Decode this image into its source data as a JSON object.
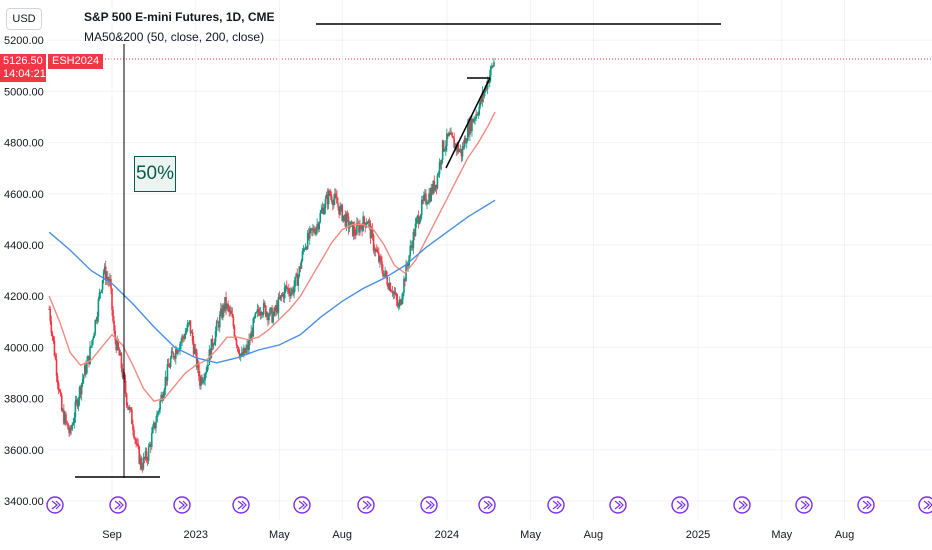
{
  "header": {
    "symbol_title": "S&P 500 E-mini Futures, 1D, CME",
    "indicator_legend": "MA50&200 (50, close, 200, close)",
    "currency": "USD"
  },
  "price_label": {
    "price": "5126.50",
    "countdown": "14:04:21",
    "symbol": "ESH2024"
  },
  "annotation": {
    "percent_label": "50%"
  },
  "colors": {
    "up": "#089981",
    "down": "#f23645",
    "ma50": "#f28b82",
    "ma200": "#4a90e2",
    "event_icon": "#7b2ff7",
    "drawing": "#000000"
  },
  "chart_data": {
    "type": "candlestick",
    "title": "S&P 500 E-mini Futures, 1D, CME",
    "y_axis": {
      "ticks": [
        5200,
        5000,
        4800,
        4600,
        4400,
        4200,
        4000,
        3800,
        3600,
        3400
      ],
      "ylim": [
        3400,
        5240
      ]
    },
    "x_axis": {
      "ticks": [
        {
          "label": "Sep",
          "month": 8
        },
        {
          "label": "2023",
          "month": 12
        },
        {
          "label": "May",
          "month": 16
        },
        {
          "label": "Aug",
          "month": 19
        },
        {
          "label": "2024",
          "month": 24
        },
        {
          "label": "May",
          "month": 28
        },
        {
          "label": "Aug",
          "month": 31
        },
        {
          "label": "2025",
          "month": 36
        },
        {
          "label": "May",
          "month": 40
        },
        {
          "label": "Aug",
          "month": 43
        }
      ]
    },
    "price_path": [
      [
        5.0,
        4150
      ],
      [
        5.3,
        3950
      ],
      [
        5.6,
        3750
      ],
      [
        6.0,
        3660
      ],
      [
        6.3,
        3780
      ],
      [
        6.6,
        3880
      ],
      [
        6.9,
        3960
      ],
      [
        7.2,
        4100
      ],
      [
        7.4,
        4200
      ],
      [
        7.6,
        4300
      ],
      [
        7.9,
        4250
      ],
      [
        8.1,
        4050
      ],
      [
        8.4,
        3950
      ],
      [
        8.7,
        3800
      ],
      [
        9.0,
        3700
      ],
      [
        9.2,
        3600
      ],
      [
        9.4,
        3540
      ],
      [
        9.7,
        3580
      ],
      [
        9.9,
        3650
      ],
      [
        10.2,
        3750
      ],
      [
        10.5,
        3860
      ],
      [
        10.8,
        3950
      ],
      [
        11.1,
        4000
      ],
      [
        11.4,
        4040
      ],
      [
        11.7,
        4090
      ],
      [
        12.0,
        3960
      ],
      [
        12.2,
        3870
      ],
      [
        12.5,
        3920
      ],
      [
        12.8,
        4020
      ],
      [
        13.1,
        4100
      ],
      [
        13.4,
        4170
      ],
      [
        13.7,
        4120
      ],
      [
        14.0,
        4010
      ],
      [
        14.2,
        3960
      ],
      [
        14.5,
        4000
      ],
      [
        14.8,
        4100
      ],
      [
        15.1,
        4160
      ],
      [
        15.4,
        4140
      ],
      [
        15.7,
        4120
      ],
      [
        16.0,
        4180
      ],
      [
        16.3,
        4230
      ],
      [
        16.6,
        4220
      ],
      [
        16.9,
        4280
      ],
      [
        17.2,
        4400
      ],
      [
        17.5,
        4440
      ],
      [
        17.8,
        4480
      ],
      [
        18.1,
        4550
      ],
      [
        18.4,
        4600
      ],
      [
        18.7,
        4570
      ],
      [
        19.0,
        4520
      ],
      [
        19.3,
        4480
      ],
      [
        19.6,
        4450
      ],
      [
        19.9,
        4480
      ],
      [
        20.2,
        4500
      ],
      [
        20.5,
        4400
      ],
      [
        20.8,
        4330
      ],
      [
        21.1,
        4270
      ],
      [
        21.4,
        4230
      ],
      [
        21.7,
        4150
      ],
      [
        22.0,
        4280
      ],
      [
        22.3,
        4400
      ],
      [
        22.6,
        4500
      ],
      [
        22.9,
        4570
      ],
      [
        23.2,
        4600
      ],
      [
        23.5,
        4650
      ],
      [
        23.8,
        4780
      ],
      [
        24.1,
        4820
      ],
      [
        24.4,
        4790
      ],
      [
        24.7,
        4760
      ],
      [
        25.0,
        4850
      ],
      [
        25.3,
        4900
      ],
      [
        25.6,
        4950
      ],
      [
        25.9,
        5030
      ],
      [
        26.1,
        5080
      ],
      [
        26.3,
        5126
      ]
    ],
    "series": [
      {
        "name": "MA50",
        "values": [
          [
            5.0,
            4200
          ],
          [
            5.5,
            4100
          ],
          [
            6.0,
            3980
          ],
          [
            6.5,
            3930
          ],
          [
            7.0,
            3950
          ],
          [
            7.5,
            4000
          ],
          [
            8.0,
            4050
          ],
          [
            8.5,
            4010
          ],
          [
            9.0,
            3930
          ],
          [
            9.5,
            3840
          ],
          [
            10.0,
            3790
          ],
          [
            10.5,
            3800
          ],
          [
            11.0,
            3850
          ],
          [
            11.5,
            3900
          ],
          [
            12.0,
            3930
          ],
          [
            12.5,
            3950
          ],
          [
            13.0,
            3990
          ],
          [
            13.5,
            4040
          ],
          [
            14.0,
            4040
          ],
          [
            14.5,
            4030
          ],
          [
            15.0,
            4040
          ],
          [
            15.5,
            4070
          ],
          [
            16.0,
            4110
          ],
          [
            16.5,
            4150
          ],
          [
            17.0,
            4200
          ],
          [
            17.5,
            4270
          ],
          [
            18.0,
            4340
          ],
          [
            18.5,
            4410
          ],
          [
            19.0,
            4460
          ],
          [
            19.5,
            4480
          ],
          [
            20.0,
            4480
          ],
          [
            20.5,
            4460
          ],
          [
            21.0,
            4400
          ],
          [
            21.5,
            4320
          ],
          [
            22.0,
            4290
          ],
          [
            22.5,
            4340
          ],
          [
            23.0,
            4420
          ],
          [
            23.5,
            4500
          ],
          [
            24.0,
            4580
          ],
          [
            24.5,
            4660
          ],
          [
            25.0,
            4740
          ],
          [
            25.5,
            4800
          ],
          [
            26.0,
            4870
          ],
          [
            26.3,
            4920
          ]
        ]
      },
      {
        "name": "MA200",
        "values": [
          [
            5.0,
            4450
          ],
          [
            6.0,
            4380
          ],
          [
            7.0,
            4300
          ],
          [
            8.0,
            4250
          ],
          [
            9.0,
            4170
          ],
          [
            10.0,
            4080
          ],
          [
            11.0,
            4000
          ],
          [
            12.0,
            3960
          ],
          [
            13.0,
            3940
          ],
          [
            14.0,
            3960
          ],
          [
            15.0,
            3990
          ],
          [
            16.0,
            4010
          ],
          [
            17.0,
            4050
          ],
          [
            18.0,
            4120
          ],
          [
            19.0,
            4180
          ],
          [
            20.0,
            4230
          ],
          [
            21.0,
            4270
          ],
          [
            22.0,
            4320
          ],
          [
            23.0,
            4390
          ],
          [
            24.0,
            4450
          ],
          [
            25.0,
            4510
          ],
          [
            26.0,
            4560
          ],
          [
            26.3,
            4575
          ]
        ]
      }
    ],
    "current_price": 5126.5
  }
}
